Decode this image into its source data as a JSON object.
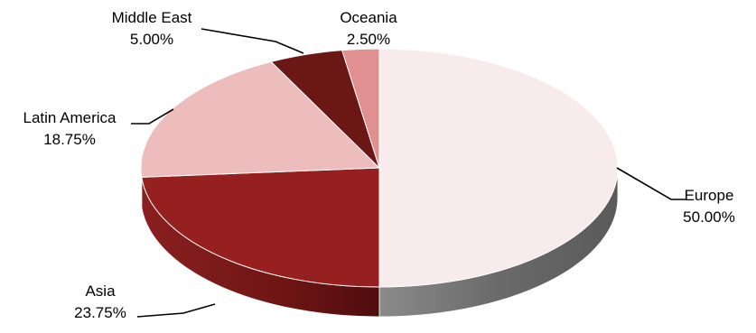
{
  "chart_data": {
    "type": "pie",
    "style": "3d",
    "categories": [
      "Europe",
      "Asia",
      "Latin America",
      "Middle East",
      "Oceania"
    ],
    "values": [
      50.0,
      23.75,
      18.75,
      5.0,
      2.5
    ],
    "value_labels": [
      "50.00%",
      "23.75%",
      "18.75%",
      "5.00%",
      "2.50%"
    ],
    "colors": [
      "#f7ebeb",
      "#96201f",
      "#ecbdbc",
      "#6b1716",
      "#e09090"
    ],
    "side_colors": [
      "#707070",
      "#6e1514",
      "#b08584",
      "#4a0f0f",
      "#a86868"
    ],
    "title": "",
    "legend": "none",
    "labels_position": "outside-with-leader-lines"
  }
}
